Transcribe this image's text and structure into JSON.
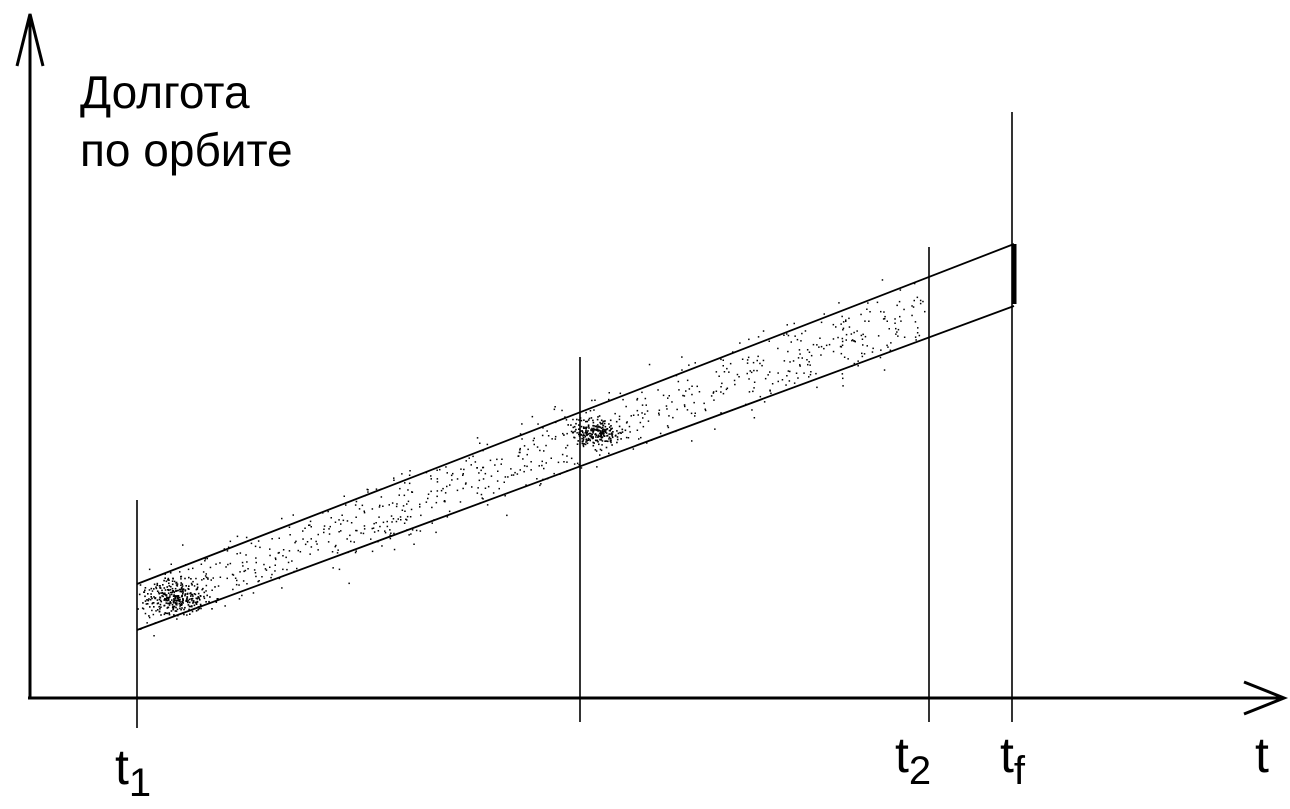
{
  "y_axis_label": {
    "line1": "Долгота",
    "line2": "по орбите"
  },
  "x_axis_label": "t",
  "ticks": {
    "t1": {
      "base": "t",
      "sub": "1"
    },
    "t2": {
      "base": "t",
      "sub": "2"
    },
    "tf": {
      "base": "t",
      "sub": "f"
    }
  },
  "colors": {
    "ink": "#000000",
    "background": "#ffffff"
  }
}
